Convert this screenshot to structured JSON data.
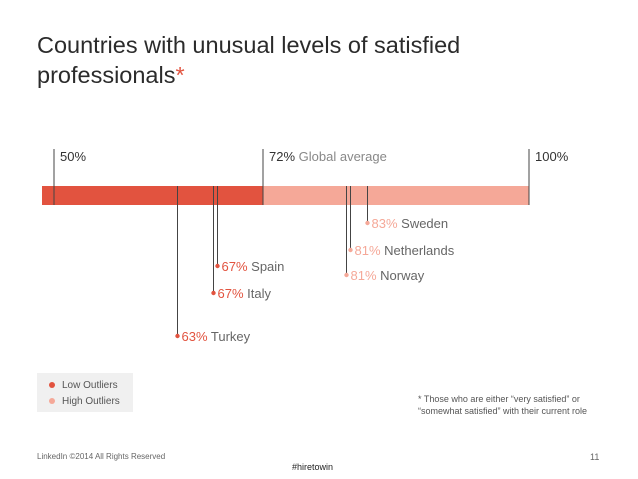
{
  "title": "Countries with unusual levels of satisfied professionals",
  "title_star": "*",
  "chart_data": {
    "type": "bar",
    "title": "Countries with unusual levels of satisfied professionals",
    "axis_min": 50,
    "axis_max": 100,
    "ticks": [
      {
        "value": 50,
        "label": "50%",
        "note": ""
      },
      {
        "value": 72,
        "label": "72%",
        "note": "Global average"
      },
      {
        "value": 100,
        "label": "100%",
        "note": ""
      }
    ],
    "global_average": 72,
    "low_outliers": [
      {
        "country": "Spain",
        "value": 67,
        "label": "67%"
      },
      {
        "country": "Italy",
        "value": 67,
        "label": "67%"
      },
      {
        "country": "Turkey",
        "value": 63,
        "label": "63%"
      }
    ],
    "high_outliers": [
      {
        "country": "Sweden",
        "value": 83,
        "label": "83%"
      },
      {
        "country": "Netherlands",
        "value": 81,
        "label": "81%"
      },
      {
        "country": "Norway",
        "value": 81,
        "label": "81%"
      }
    ]
  },
  "legend": {
    "low": {
      "label": "Low Outliers",
      "color": "#e2533f"
    },
    "high": {
      "label": "High Outliers",
      "color": "#f5a898"
    }
  },
  "colors": {
    "low_bar": "#e2533f",
    "high_bar": "#f5a898",
    "tick_line": "#444444"
  },
  "footnote": "* Those who are either “very satisfied” or “somewhat satisfied” with their current role",
  "footer": {
    "copyright": "LinkedIn ©2014 All Rights Reserved",
    "page": "11",
    "hashtag": "#hiretowin"
  }
}
